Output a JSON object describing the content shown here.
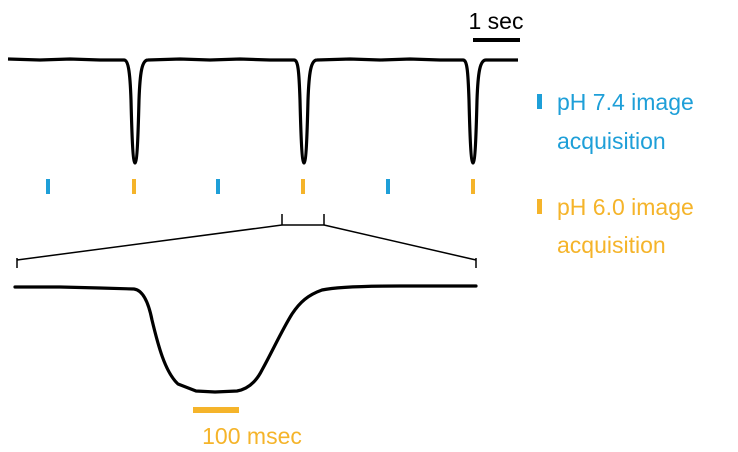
{
  "scale_bars": {
    "top": {
      "label": "1 sec"
    },
    "bottom": {
      "label": "100 msec"
    }
  },
  "legend": [
    {
      "color": "#1e9fd8",
      "line1": "pH 7.4 image",
      "line2": "acquisition"
    },
    {
      "color": "#f5b42a",
      "line1": "pH 6.0 image",
      "line2": "acquisition"
    }
  ],
  "colors": {
    "trace": "#000000",
    "ph74": "#1e9fd8",
    "ph60": "#f5b42a"
  }
}
